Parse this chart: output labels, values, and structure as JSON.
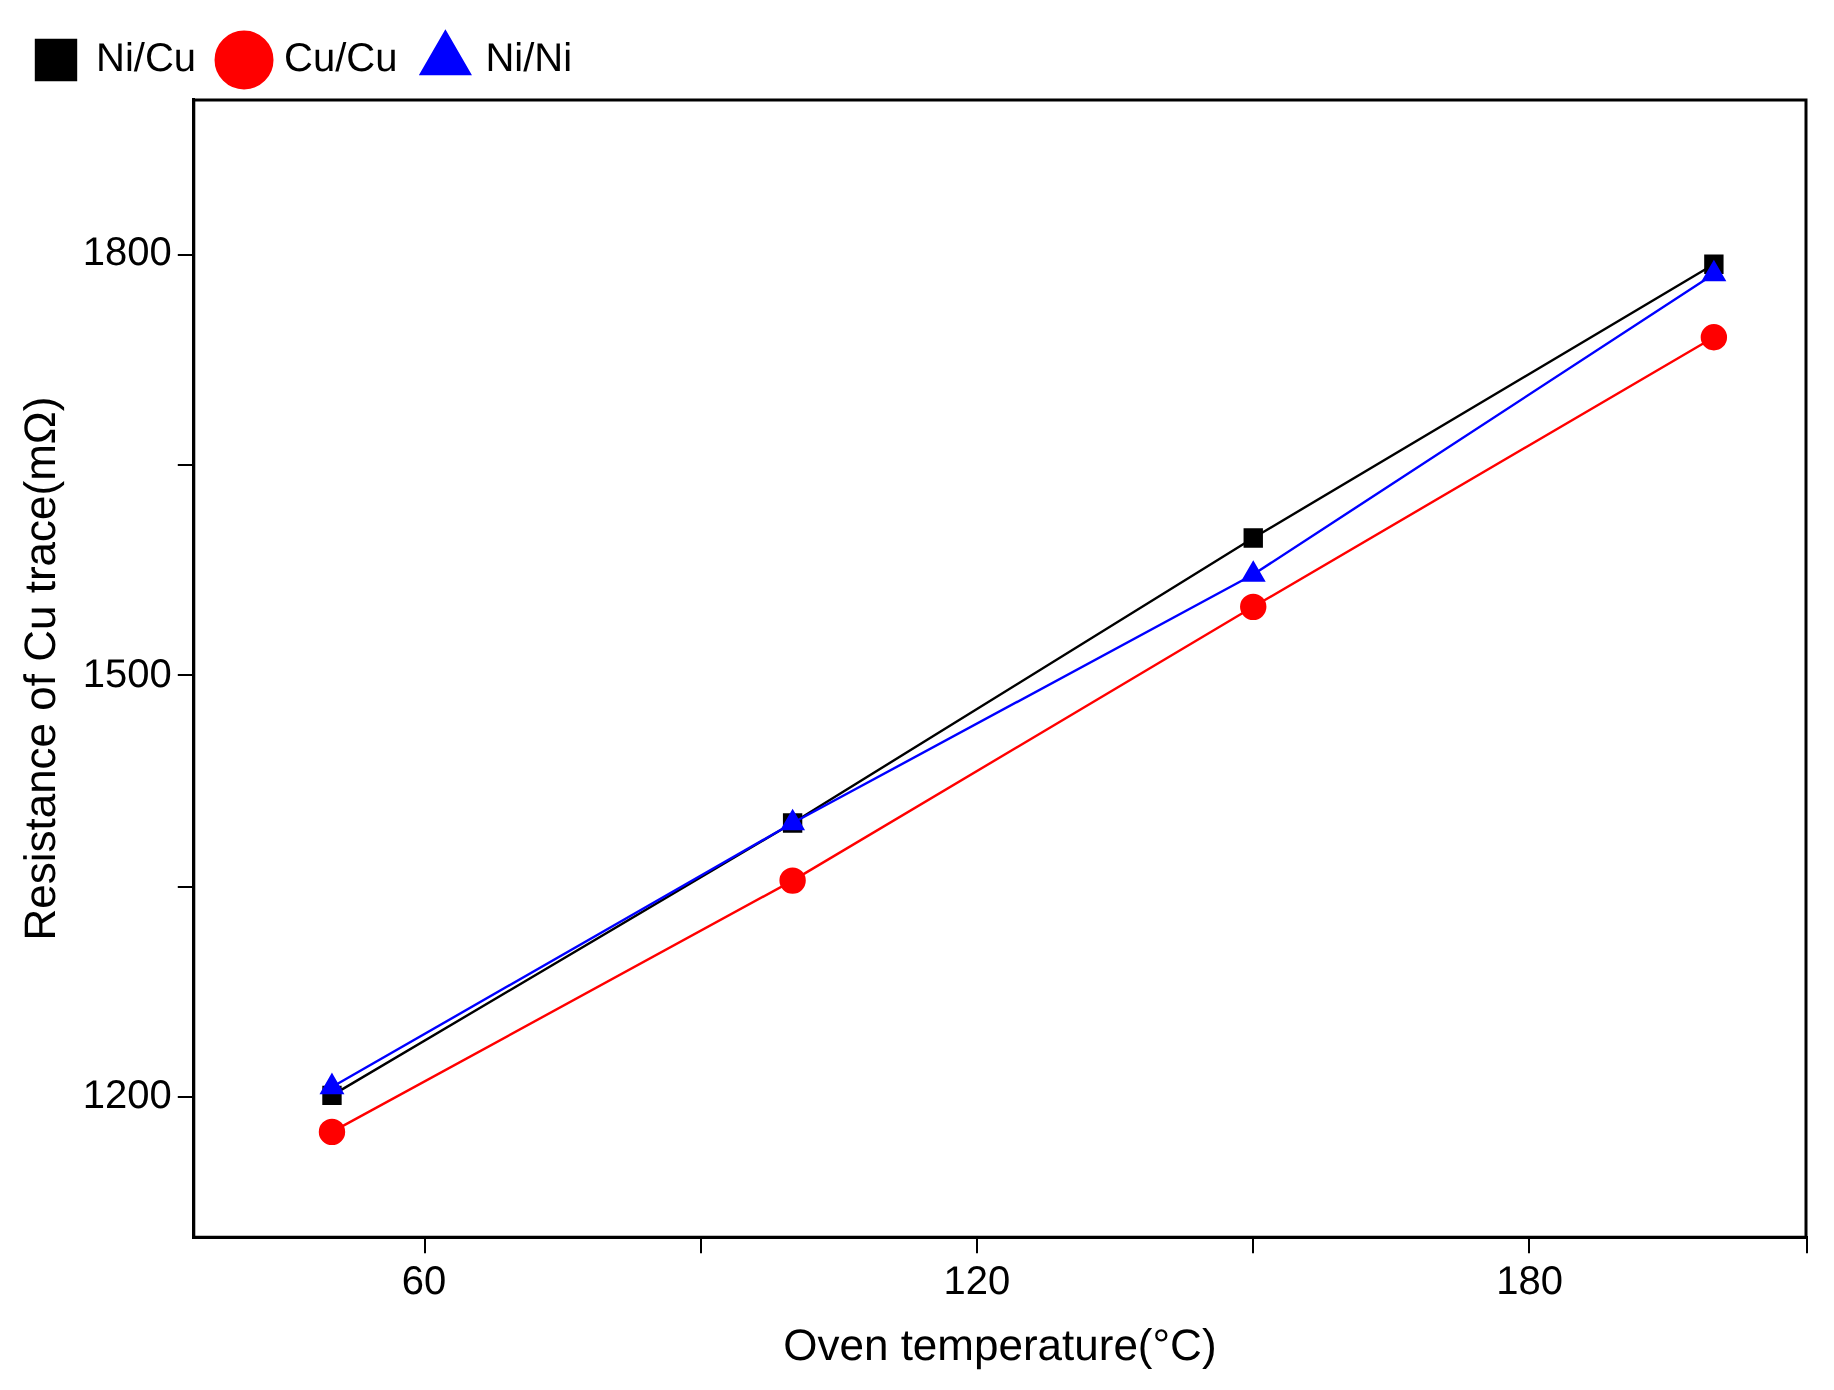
{
  "chart_data": {
    "type": "line",
    "xlabel": "Oven temperature(°C)",
    "ylabel": "Resistance of Cu trace(mΩ)",
    "x": [
      50,
      100,
      150,
      200
    ],
    "series": [
      {
        "name": "Ni/Cu",
        "color": "#000000",
        "marker": "square",
        "values": [
          1201,
          1395,
          1598,
          1793
        ]
      },
      {
        "name": "Cu/Cu",
        "color": "#ff0000",
        "marker": "circle",
        "values": [
          1175,
          1354,
          1549,
          1741
        ]
      },
      {
        "name": "Ni/Ni",
        "color": "#0000ff",
        "marker": "triangle",
        "values": [
          1207,
          1395,
          1572,
          1786
        ]
      }
    ],
    "xlim": [
      35,
      210
    ],
    "xticks": [
      60,
      {
        "value": 90,
        "label": null
      },
      120,
      {
        "value": 150,
        "label": null
      },
      180,
      {
        "value": 210,
        "label": null
      }
    ],
    "ylim": [
      1100,
      1910
    ],
    "yticks": [
      1200,
      {
        "value": 1350,
        "label": null
      },
      1500,
      {
        "value": 1650,
        "label": null
      },
      1800
    ],
    "grid": false,
    "legend": "top left",
    "line_style": "solid"
  }
}
